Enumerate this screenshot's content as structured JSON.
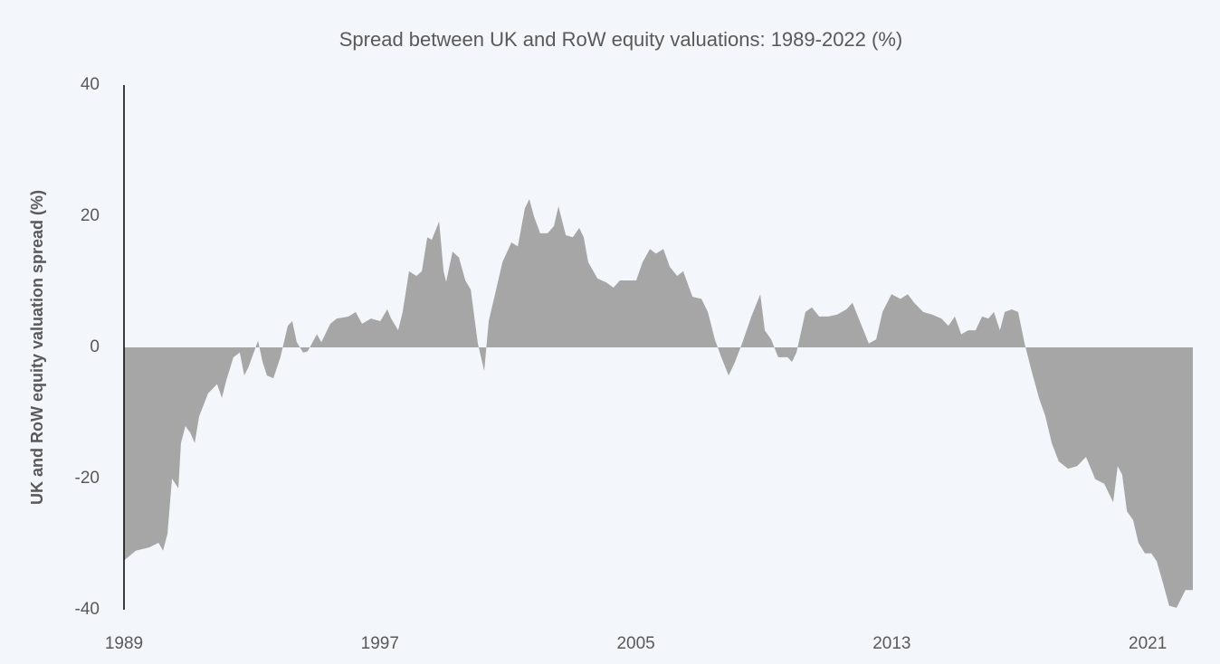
{
  "chart_data": {
    "type": "area",
    "title": "Spread between UK and RoW equity valuations: 1989-2022 (%)",
    "y_label": "UK and RoW equity valuation spread (%)",
    "x": [
      1989.0,
      1989.37,
      1989.79,
      1990.08,
      1990.22,
      1990.36,
      1990.5,
      1990.7,
      1990.78,
      1990.92,
      1991.07,
      1991.21,
      1991.35,
      1991.63,
      1991.91,
      1992.06,
      1992.2,
      1992.42,
      1992.62,
      1992.76,
      1992.9,
      1993.19,
      1993.33,
      1993.47,
      1993.67,
      1993.89,
      1994.12,
      1994.26,
      1994.4,
      1994.6,
      1994.74,
      1995.03,
      1995.17,
      1995.45,
      1995.65,
      1996.02,
      1996.24,
      1996.44,
      1996.72,
      1997.01,
      1997.23,
      1997.35,
      1997.57,
      1997.71,
      1997.91,
      1998.14,
      1998.31,
      1998.48,
      1998.62,
      1998.85,
      1998.99,
      1999.07,
      1999.27,
      1999.47,
      1999.67,
      1999.84,
      2000.06,
      2000.26,
      2000.4,
      2000.63,
      2000.83,
      2001.11,
      2001.31,
      2001.53,
      2001.67,
      2001.82,
      2002.01,
      2002.24,
      2002.44,
      2002.58,
      2002.81,
      2003.03,
      2003.23,
      2003.37,
      2003.51,
      2003.8,
      2004.08,
      2004.3,
      2004.5,
      2004.79,
      2005.01,
      2005.21,
      2005.44,
      2005.63,
      2005.86,
      2006.06,
      2006.29,
      2006.48,
      2006.77,
      2007.05,
      2007.25,
      2007.47,
      2007.67,
      2007.9,
      2008.1,
      2008.32,
      2008.61,
      2008.89,
      2009.03,
      2009.23,
      2009.45,
      2009.74,
      2009.88,
      2010.02,
      2010.3,
      2010.5,
      2010.73,
      2011.01,
      2011.29,
      2011.58,
      2011.77,
      2012.0,
      2012.28,
      2012.51,
      2012.71,
      2012.99,
      2013.27,
      2013.5,
      2013.7,
      2013.98,
      2014.26,
      2014.55,
      2014.77,
      2014.97,
      2015.17,
      2015.39,
      2015.62,
      2015.82,
      2016.02,
      2016.19,
      2016.38,
      2016.53,
      2016.75,
      2016.95,
      2017.15,
      2017.37,
      2017.6,
      2017.8,
      2018.0,
      2018.22,
      2018.51,
      2018.79,
      2019.07,
      2019.36,
      2019.64,
      2019.92,
      2020.06,
      2020.2,
      2020.35,
      2020.54,
      2020.71,
      2020.91,
      2021.11,
      2021.28,
      2021.48,
      2021.67,
      2021.9,
      2022.18,
      2022.41
    ],
    "values": [
      -32.5,
      -31,
      -30.5,
      -29.8,
      -31,
      -28.4,
      -20,
      -21.5,
      -14.6,
      -12,
      -13,
      -14.6,
      -10.5,
      -7,
      -5.6,
      -7.7,
      -5,
      -1.5,
      -0.8,
      -4.3,
      -2.9,
      1,
      -2.2,
      -4.3,
      -4.7,
      -1.5,
      3.3,
      4,
      0.8,
      -0.8,
      -0.6,
      2,
      0.8,
      3.6,
      4.4,
      4.7,
      5.4,
      3.6,
      4.4,
      4,
      5.8,
      4.4,
      2.6,
      5.4,
      11.6,
      10.9,
      11.6,
      16.8,
      16.4,
      19.2,
      11.6,
      10,
      14.6,
      13.7,
      10.2,
      8.8,
      0.6,
      -3.6,
      4,
      8.8,
      13,
      16,
      15.4,
      21.2,
      22.6,
      19.9,
      17.4,
      17.4,
      18.5,
      21.5,
      17.1,
      16.8,
      18.2,
      16.8,
      13,
      10.5,
      9.9,
      9.1,
      10.2,
      10.2,
      10.2,
      13,
      15,
      14.3,
      15,
      12.3,
      10.9,
      11.6,
      7.7,
      7.4,
      5.4,
      1.2,
      -1.5,
      -4.3,
      -2.2,
      0.6,
      4.7,
      8.1,
      2.6,
      1.2,
      -1.5,
      -1.5,
      -2.2,
      -0.8,
      5.4,
      6.1,
      4.7,
      4.7,
      5,
      5.8,
      6.8,
      4,
      0.6,
      1.2,
      5.4,
      8.1,
      7.4,
      8.1,
      6.8,
      5.4,
      5,
      4.4,
      3.3,
      4.7,
      2,
      2.6,
      2.6,
      4.7,
      4.4,
      5.4,
      2.6,
      5.4,
      5.8,
      5.4,
      0.6,
      -3.6,
      -7.7,
      -10.5,
      -14.6,
      -17.4,
      -18.5,
      -18.1,
      -16.7,
      -20.1,
      -20.8,
      -23.6,
      -18.1,
      -19.4,
      -25,
      -26.3,
      -29.8,
      -31.4,
      -31.4,
      -32.6,
      -36,
      -39.4,
      -39.7,
      -37,
      -37
    ],
    "color": "#a6a6a6",
    "xlim": [
      1989,
      2022.41
    ],
    "xticks": [
      1989,
      1997,
      2005,
      2013,
      2021
    ],
    "ylim": [
      -40,
      40
    ],
    "yticks": [
      -40,
      -20,
      0,
      20,
      40
    ]
  }
}
